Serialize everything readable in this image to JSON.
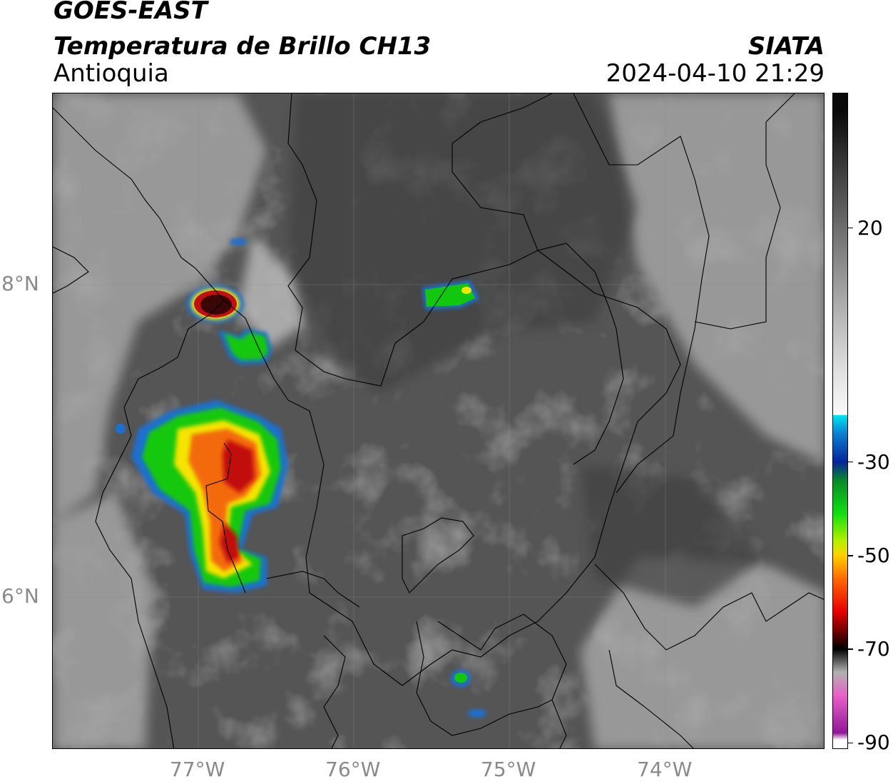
{
  "header": {
    "title": "GOES-EAST",
    "subtitle": "Temperatura de Brillo CH13",
    "region": "Antioquia",
    "organization": "SIATA",
    "timestamp": "2024-04-10 21:29"
  },
  "map": {
    "lon_range": [
      -77.94,
      -72.97
    ],
    "lat_range": [
      5.03,
      9.23
    ],
    "lat_labels": [
      {
        "value": 8,
        "text": "8°N"
      },
      {
        "value": 6,
        "text": "6°N"
      }
    ],
    "lon_labels": [
      {
        "value": -77,
        "text": "77°W"
      },
      {
        "value": -76,
        "text": "76°W"
      },
      {
        "value": -75,
        "text": "75°W"
      },
      {
        "value": -74,
        "text": "74°W"
      }
    ],
    "gridlines": true,
    "colors": {
      "background_cloudfree": "#555555",
      "warm_cloud": "#bdbdbd",
      "borders": "#000000",
      "cold_blue": "#1a6fd0",
      "cold_green": "#12c80f",
      "very_cold_yellow": "#f4e400",
      "very_cold_orange": "#f36a10",
      "extreme_red": "#c21010",
      "extreme_dark": "#3a0606"
    },
    "storms": [
      {
        "id": "uraba-north",
        "core": "extreme",
        "lon": -76.88,
        "lat": 7.9
      },
      {
        "id": "uraba-south",
        "core": "green",
        "lon": -76.71,
        "lat": 7.68
      },
      {
        "id": "central-north",
        "core": "yellow",
        "lon": -75.25,
        "lat": 7.9
      },
      {
        "id": "atrato-large",
        "core": "extreme",
        "lon": -76.75,
        "lat": 6.85
      },
      {
        "id": "southwest-small",
        "core": "green",
        "lon": -75.27,
        "lat": 5.39
      },
      {
        "id": "southwest-tiny",
        "core": "blue",
        "lon": -75.2,
        "lat": 5.2
      }
    ]
  },
  "colorbar": {
    "ticks": [
      {
        "value": 20,
        "label": "20"
      },
      {
        "value": -30,
        "label": "-30"
      },
      {
        "value": -50,
        "label": "-50"
      },
      {
        "value": -70,
        "label": "-70"
      },
      {
        "value": -90,
        "label": "-90"
      }
    ],
    "stops": [
      {
        "value": 45,
        "color": "#0a0a0a"
      },
      {
        "value": 35,
        "color": "#333333"
      },
      {
        "value": 20,
        "color": "#6e6e6e"
      },
      {
        "value": 5,
        "color": "#a8a8a8"
      },
      {
        "value": -10,
        "color": "#dedede"
      },
      {
        "value": -19.9,
        "color": "#fafafa"
      },
      {
        "value": -20,
        "color": "#00e5f0"
      },
      {
        "value": -24,
        "color": "#0a7fd0"
      },
      {
        "value": -30,
        "color": "#06249a"
      },
      {
        "value": -34,
        "color": "#0a8a2a"
      },
      {
        "value": -41,
        "color": "#10e010"
      },
      {
        "value": -47,
        "color": "#b8f000"
      },
      {
        "value": -50,
        "color": "#ffd000"
      },
      {
        "value": -55,
        "color": "#ff6a00"
      },
      {
        "value": -62,
        "color": "#e80000"
      },
      {
        "value": -67,
        "color": "#5a0000"
      },
      {
        "value": -70,
        "color": "#000000"
      },
      {
        "value": -75,
        "color": "#b0b0b0"
      },
      {
        "value": -80,
        "color": "#e860c8"
      },
      {
        "value": -88,
        "color": "#901898"
      },
      {
        "value": -89.5,
        "color": "#ffffff"
      }
    ],
    "range": [
      -91.3,
      48.9
    ]
  }
}
